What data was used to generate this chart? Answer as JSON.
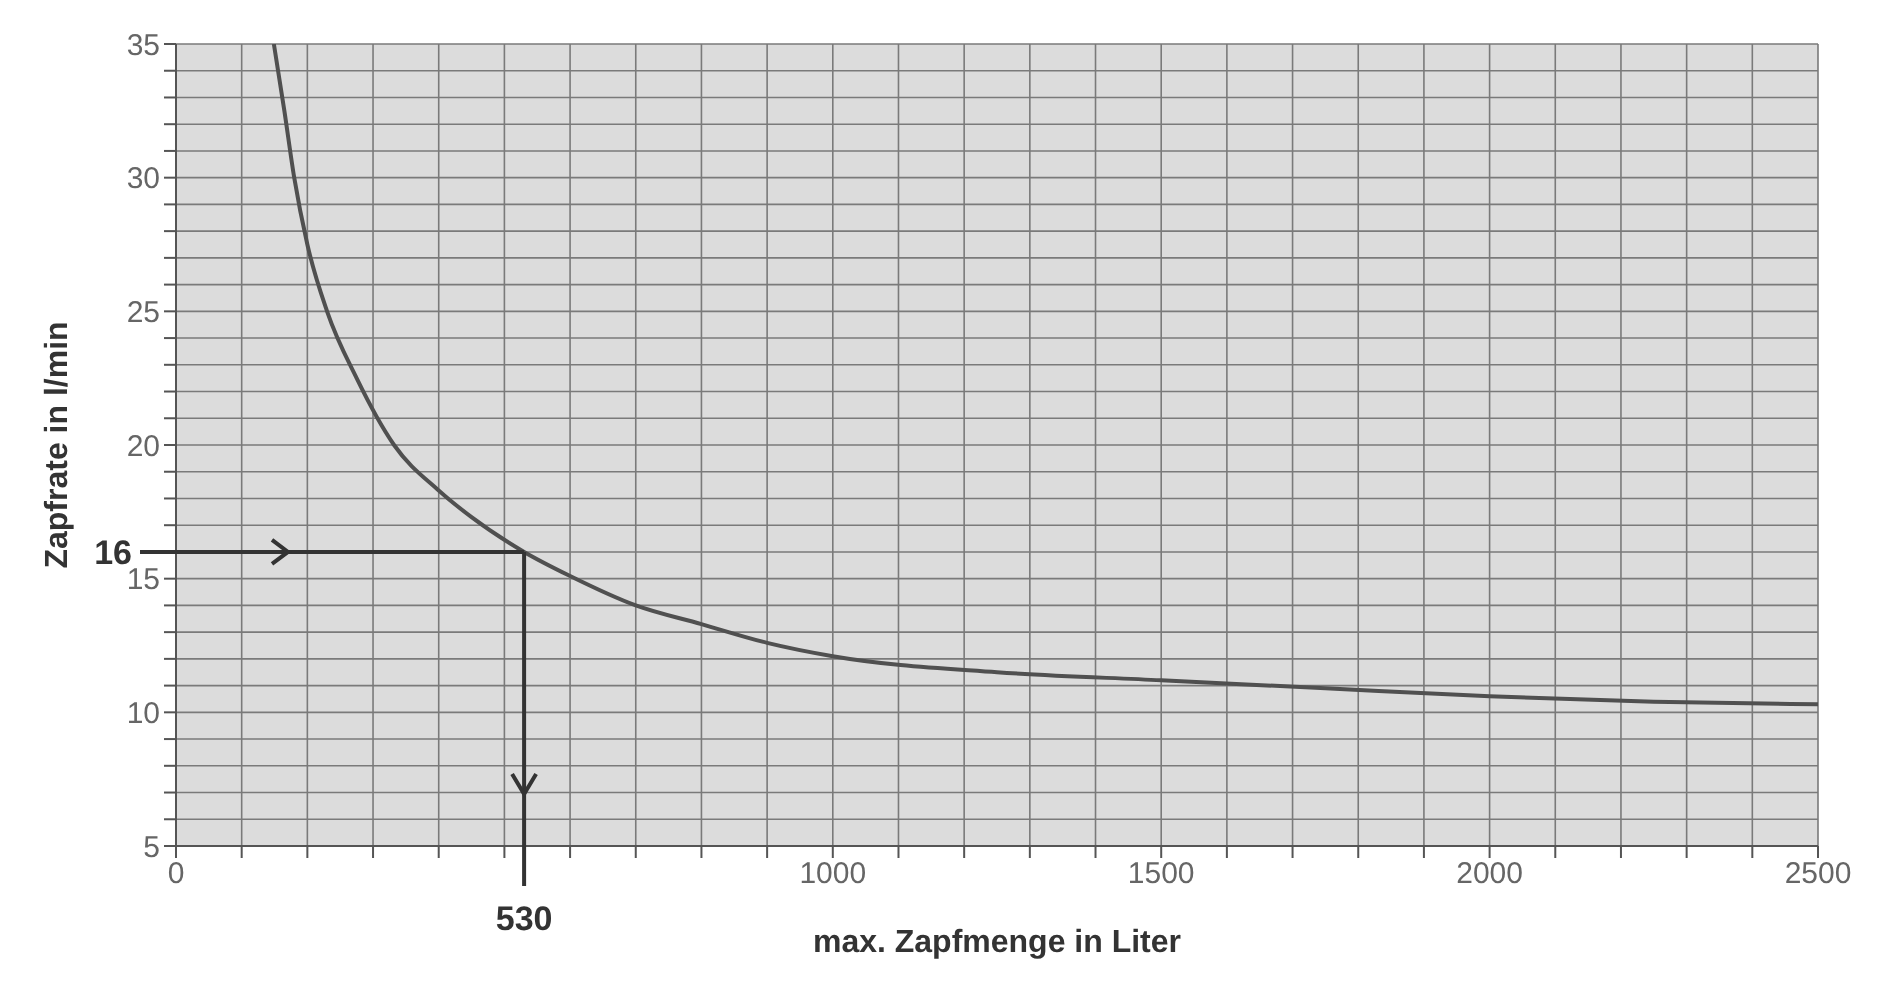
{
  "chart_data": {
    "type": "line",
    "xlabel": "max. Zapfmenge in Liter",
    "ylabel": "Zapfrate in l/min",
    "x": [
      149,
      165,
      180,
      200,
      230,
      275,
      332,
      400,
      450,
      530,
      600,
      700,
      800,
      900,
      1000,
      1250,
      1500,
      1750,
      2000,
      2250,
      2500
    ],
    "series": [
      {
        "color": "#505050",
        "values": [
          35,
          32.5,
          30,
          27.5,
          25,
          22.5,
          20,
          18.3,
          17.3,
          16,
          15.1,
          14,
          13.3,
          12.6,
          12.1,
          11.5,
          11.2,
          10.9,
          10.6,
          10.4,
          10.3
        ]
      }
    ],
    "xlim": [
      0,
      2500
    ],
    "xticks": [
      0,
      {
        "value": 100,
        "label": null
      },
      {
        "value": 200,
        "label": null
      },
      {
        "value": 300,
        "label": null
      },
      {
        "value": 400,
        "label": null
      },
      {
        "value": 500,
        "label": null
      },
      {
        "value": 600,
        "label": null
      },
      {
        "value": 700,
        "label": null
      },
      {
        "value": 800,
        "label": null
      },
      {
        "value": 900,
        "label": null
      },
      1000,
      {
        "value": 1100,
        "label": null
      },
      {
        "value": 1200,
        "label": null
      },
      {
        "value": 1300,
        "label": null
      },
      {
        "value": 1400,
        "label": null
      },
      1500,
      {
        "value": 1600,
        "label": null
      },
      {
        "value": 1700,
        "label": null
      },
      {
        "value": 1800,
        "label": null
      },
      {
        "value": 1900,
        "label": null
      },
      2000,
      {
        "value": 2100,
        "label": null
      },
      {
        "value": 2200,
        "label": null
      },
      {
        "value": 2300,
        "label": null
      },
      {
        "value": 2400,
        "label": null
      },
      2500
    ],
    "ylim": [
      5,
      35
    ],
    "yticks": [
      5,
      {
        "value": 6,
        "label": null
      },
      {
        "value": 7,
        "label": null
      },
      {
        "value": 8,
        "label": null
      },
      {
        "value": 9,
        "label": null
      },
      10,
      {
        "value": 11,
        "label": null
      },
      {
        "value": 12,
        "label": null
      },
      {
        "value": 13,
        "label": null
      },
      {
        "value": 14,
        "label": null
      },
      15,
      {
        "value": 16,
        "label": null
      },
      {
        "value": 17,
        "label": null
      },
      {
        "value": 18,
        "label": null
      },
      {
        "value": 19,
        "label": null
      },
      20,
      {
        "value": 21,
        "label": null
      },
      {
        "value": 22,
        "label": null
      },
      {
        "value": 23,
        "label": null
      },
      {
        "value": 24,
        "label": null
      },
      25,
      {
        "value": 26,
        "label": null
      },
      {
        "value": 27,
        "label": null
      },
      {
        "value": 28,
        "label": null
      },
      {
        "value": 29,
        "label": null
      },
      30,
      {
        "value": 31,
        "label": null
      },
      {
        "value": 32,
        "label": null
      },
      {
        "value": 33,
        "label": null
      },
      {
        "value": 34,
        "label": null
      },
      35
    ],
    "grid": true,
    "marker": "none",
    "line_style": "solid",
    "ref_lines": [
      {
        "axis": "y",
        "value": 16,
        "label": "16",
        "color": "#333333"
      },
      {
        "axis": "x",
        "value": 530,
        "label": "530",
        "color": "#333333"
      }
    ]
  }
}
